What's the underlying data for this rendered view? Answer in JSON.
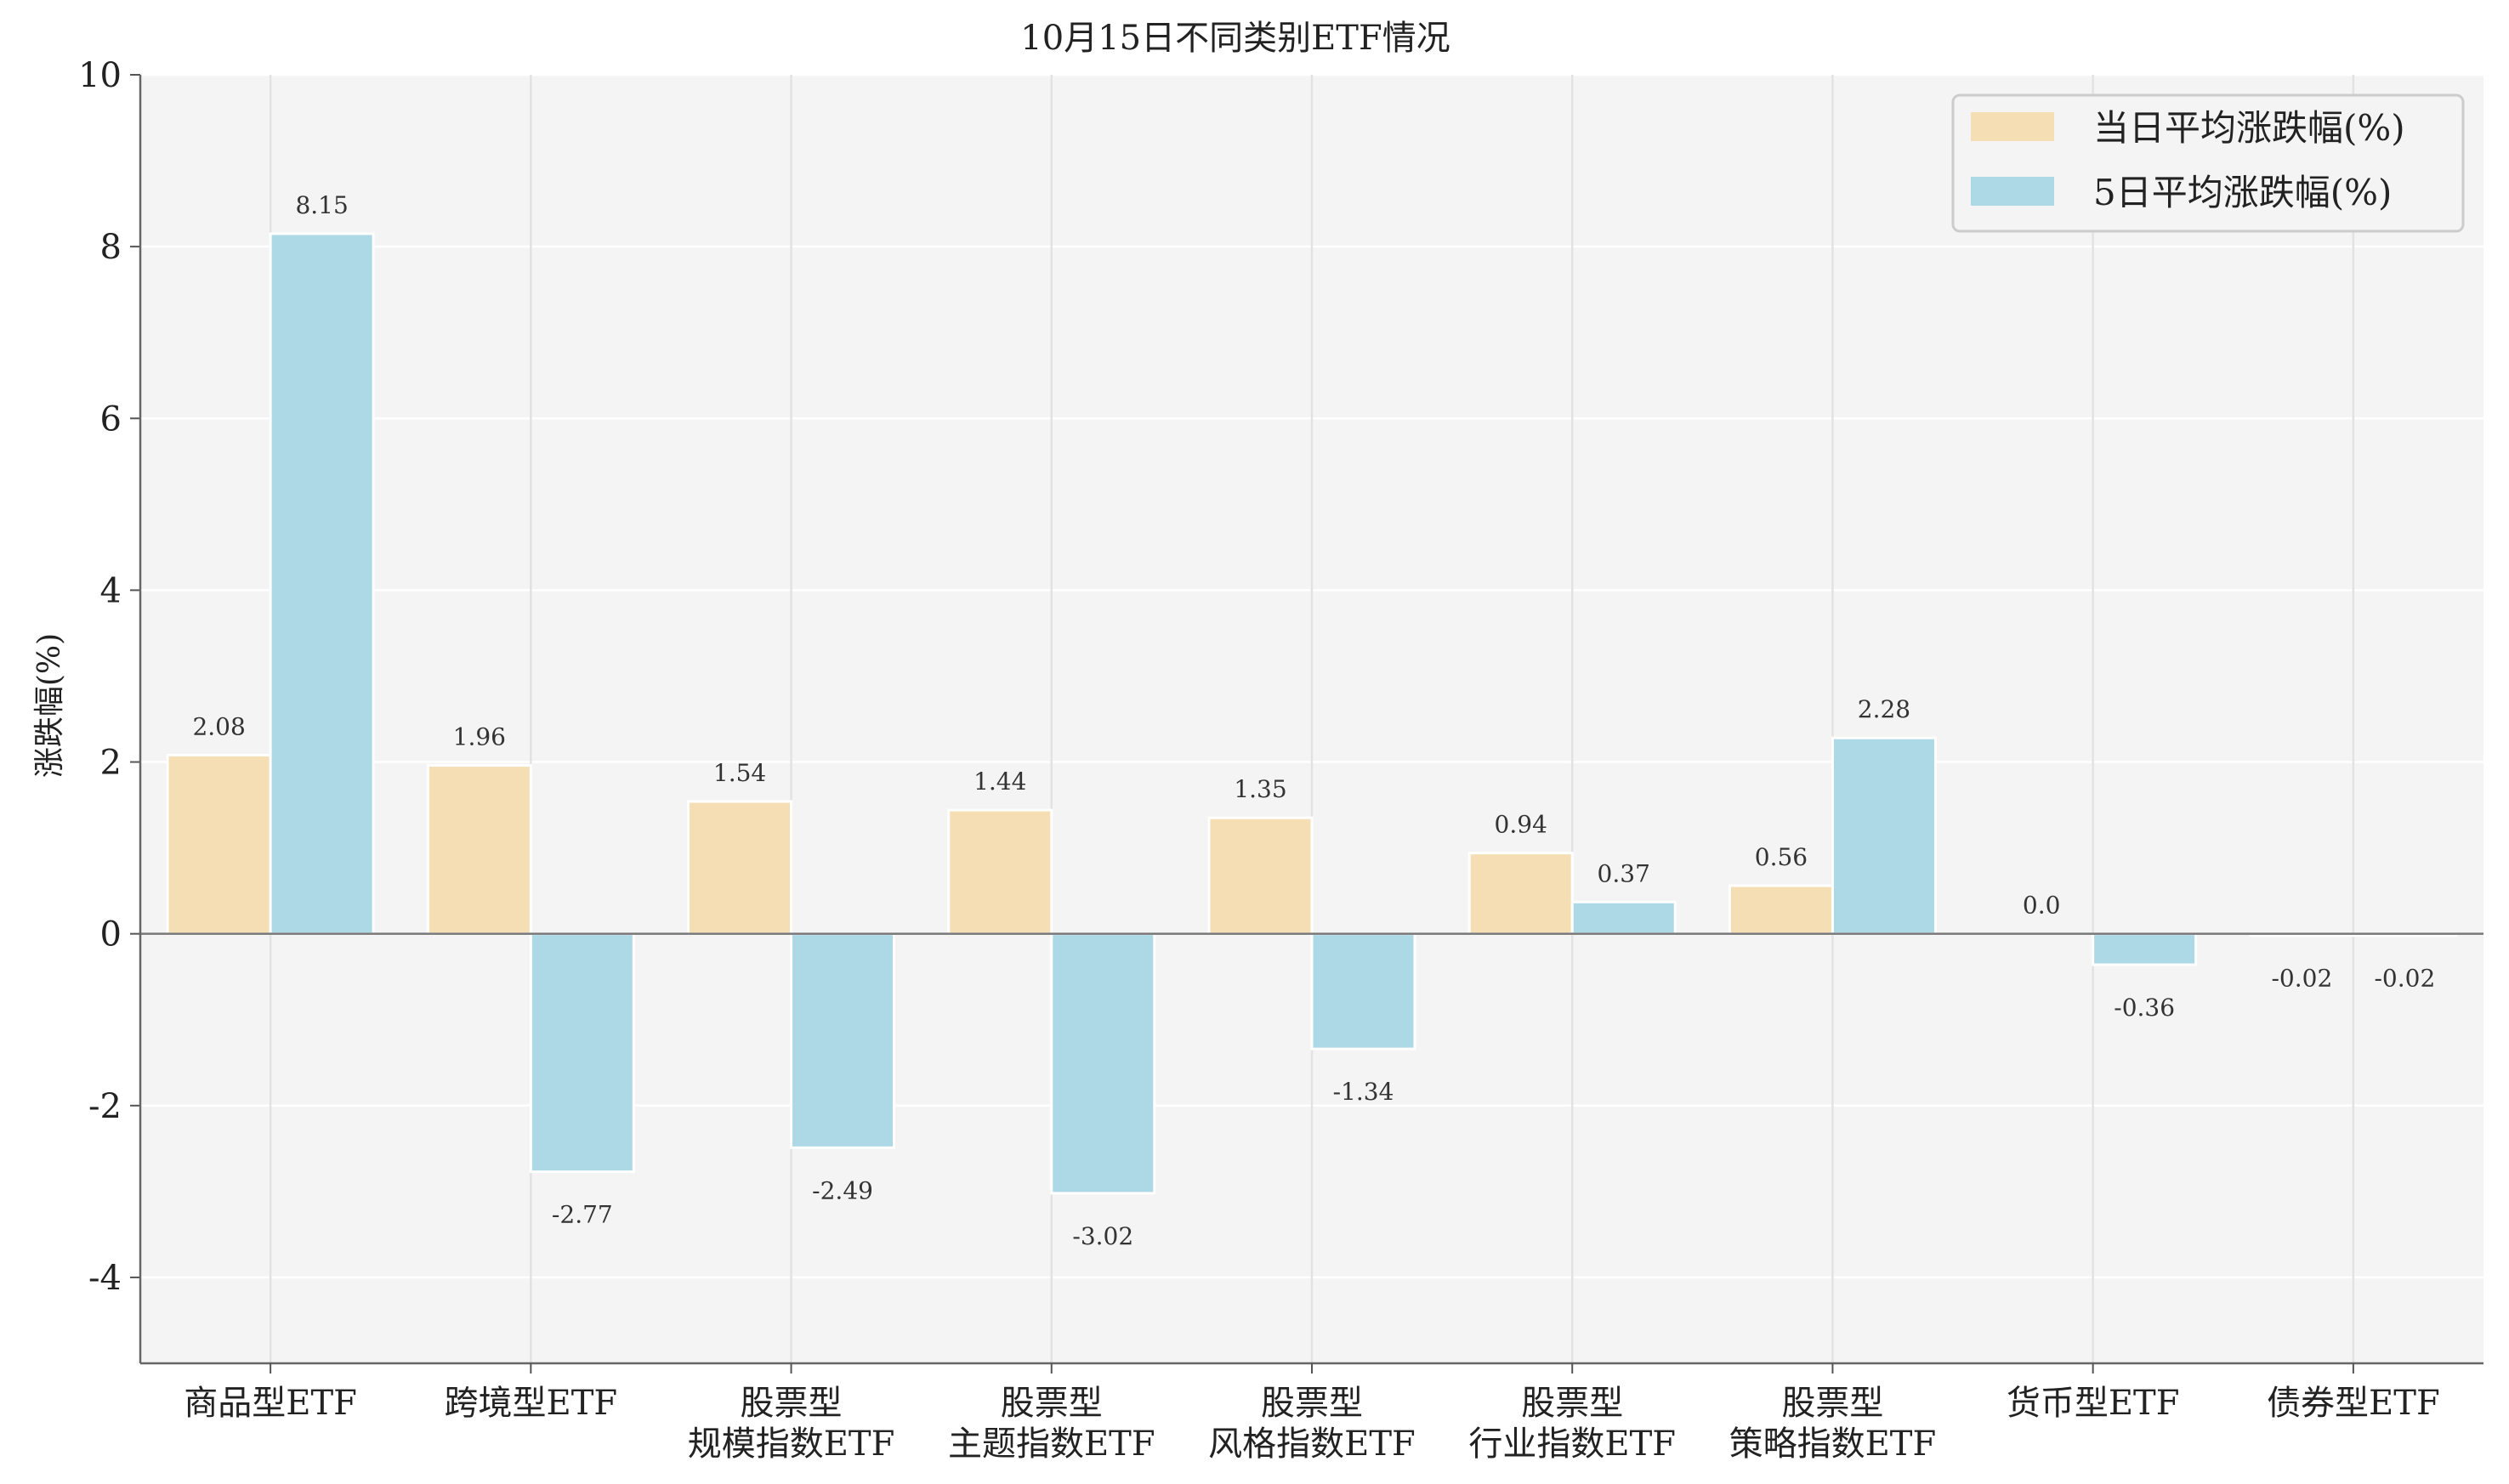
{
  "chart_data": {
    "type": "bar",
    "title": "10月15日不同类别ETF情况",
    "xlabel": "",
    "ylabel": "涨跌幅(%)",
    "ylim": [
      -5,
      10
    ],
    "yticks": [
      -4,
      -2,
      0,
      2,
      4,
      6,
      8,
      10
    ],
    "ytick_labels": [
      "-4",
      "-2",
      "0",
      "2",
      "4",
      "6",
      "8",
      "10"
    ],
    "grid": true,
    "legend_position": "top-right",
    "categories": [
      [
        "商品型ETF"
      ],
      [
        "跨境型ETF"
      ],
      [
        "股票型",
        "规模指数ETF"
      ],
      [
        "股票型",
        "主题指数ETF"
      ],
      [
        "股票型",
        "风格指数ETF"
      ],
      [
        "股票型",
        "行业指数ETF"
      ],
      [
        "股票型",
        "策略指数ETF"
      ],
      [
        "货币型ETF"
      ],
      [
        "债券型ETF"
      ]
    ],
    "series": [
      {
        "name": "当日平均涨跌幅(%)",
        "color": "#f5deb3",
        "values": [
          2.08,
          1.96,
          1.54,
          1.44,
          1.35,
          0.94,
          0.56,
          0.0,
          -0.02
        ],
        "labels": [
          "2.08",
          "1.96",
          "1.54",
          "1.44",
          "1.35",
          "0.94",
          "0.56",
          "0.0",
          "-0.02"
        ]
      },
      {
        "name": "5日平均涨跌幅(%)",
        "color": "#add8e6",
        "values": [
          8.15,
          -2.77,
          -2.49,
          -3.02,
          -1.34,
          0.37,
          2.28,
          -0.36,
          -0.02
        ],
        "labels": [
          "8.15",
          "-2.77",
          "-2.49",
          "-3.02",
          "-1.34",
          "0.37",
          "2.28",
          "-0.36",
          "-0.02"
        ]
      }
    ]
  }
}
